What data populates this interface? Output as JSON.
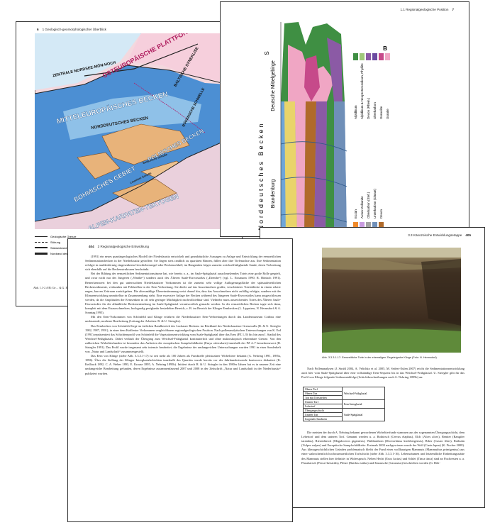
{
  "page1": {
    "header": {
      "number": "6",
      "title": "1 Geologisch-geomorphologischer Überblick"
    },
    "map": {
      "labels": [
        "OSTEUROPÄISCHE PLATTFORM",
        "ZENTRALE NORDSEE-MÖN-HOCH",
        "BALTISCHE SYNEKLISE",
        "RÜGENSCHE SCHWELLE",
        "MITTELEUROPÄISCHES BECKEN",
        "NORDDEUTSCHES BECKEN",
        "POLNISCHES BECKEN",
        "BÖHMISCHES GEBIET",
        "Sudetische Scholle",
        "Lausitzer Scholle",
        "ALPEN-KARPATEN-TEKTOGEN"
      ]
    },
    "legend": [
      "Geologische Grenze",
      "Störung",
      "Südwestrand",
      "Nordrand des"
    ],
    "caption": "Abb. 1.1-2 A/B: Ge… & G. Ehrenberg 1985, verä…"
  },
  "page2": {
    "header": {
      "title": "1.1 Regionalgeologische Position",
      "number": "7"
    },
    "section_labels": {
      "left": "S",
      "right": "B",
      "mountains": "Deutsche Mittelgebirge",
      "basin": "Norddeutsches Becken",
      "region": "Brandenburg"
    },
    "legend_a": [
      {
        "label": "Alpidikum",
        "color": "#3f8f43"
      },
      {
        "label": "Alpidikum & Neoproterozoikum, Phyllite",
        "color": "#9fc87a"
      },
      {
        "label": "Devon (Rhein.)",
        "color": "#8b5aa5"
      },
      {
        "label": "Oberkarbon",
        "color": "#6c4ba0"
      },
      {
        "label": "Granulite",
        "color": "#c64a8a"
      },
      {
        "label": "Granite",
        "color": "#f0a6c4"
      }
    ],
    "legend_b": [
      {
        "label": "Eozän",
        "color": "#f08a2a"
      },
      {
        "label": "Autun-Vulkanite",
        "color": "#c89adf"
      },
      {
        "label": "Oberkarbon (Stef.)",
        "color": "#a2a2a2"
      },
      {
        "label": "Unterkarbon (Dinant)",
        "color": "#6f8fb8"
      },
      {
        "label": "Devon",
        "color": "#b06a2a"
      }
    ]
  },
  "page3": {
    "header": {
      "number": "404",
      "title": "3 Regionalgeologische Entwicklung"
    },
    "paragraphs": [
      "(1991) ein neues quartärgeologisches Modell der Niederlausitz entwickelt und grundsätzliche Aussagen zu Anlage und Entwicklung der eemzeitlichen Sedimentationsbecken in der Niederlausitz getroffen: Sie liegen stets randlich zu quartären Rinnen, füllen aber ihre Tiefenachse aus. Ihre Sedimentation erfolgte in muldenförmig eingesenktem Geschiebemergel oder Beckenschluff; im Hangenden folgen zumeist weichselfrühglaziale Sande, deren Verbreitung sich ebenfalls auf die Beckenstrukturen beschränkt.",
      "Bei der Bildung der eemzeitlichen Sedimentationsräume hat, wie bereits o. a., im Saale-Spätglazial ausschmelzendes Toteis eine große Rolle gespielt, und zwar nicht nur des Jüngeren („Warthe“) sondern auch des Älteren Saale-Eisvorstoßes („Drenthe“) (vgl. L. Eissmann 1990, R. Bönisch 1991). Bemerkenswert bei den gut untersuchten Niederlausitzer Vorkommen ist die zumeist sehr vollige Auflagerungsfläche der spätsaalezeitlichen Beckensedimente, verbunden mit Fehlstellen in der Eem-Verbreitung. Sie dürfte auf das Ausschmelzen großer, verschütteter Toteisblöcke in einem relativ engen, kurzen Zeitraum zurückgehen. Die altersmäßige Übereinstimmung weist darauf hin, dass das Ausschmelzen nicht zufällig erfolgte, sondern mit der Klimaentwicklung unmittelbar in Zusammenhang steht. Eine exzessive Anlage der Becken während des Jüngeren Saale-Eisvorstoßes kann ausgeschlossen werden, da die Amplituden der Eemsenken in oft sehr geringer Mächtigkeit nachvollziehbar sind. Vielmehr muss ausreichendes Toteis des Älteren Saale-Eisvorstoßes für die allmähliche Beckenentstehung im Saale-Spätglazial verantwortlich gemacht werden. In der eemzeitlichen Becken tagte sich dann, komplett mit dem Eisausschmelzen, hochgradig periglaziär besiedelten Bereich, z. B. im Bereich der Klinger Eembecken (L. Lippstreu, N. Hermsdorf & A. Sonntag 1995).",
      "Mit den Eem-Vorkommen von Schönfeld und Klinge erfahren die Niederlausitzer Eem-Verbreitungen durch das Landesmuseum Cottbus eine umfassende, moderne Bearbeitung (Leitung der Arbeiten: R. & U. Striegler).",
      "Das Eembecken von Schönfeld liegt im östlichen Randbereich des Luckauer Beckens im Rückland des Niederlausitzer Grenzwalls (R. & U. Striegler 1982, 1987, 1991), in einer dem Kohlentor Vorkommen vergleichbaren regionalgeologischen Position. Nach pollenanalytischen Untersuchungen von K. Erd (1991) repräsentiert das Schichtenprofil von Schönfeld die Vegetationsentwicklung vom Saale-Spätglazial über das Eem (PZ 1–9) bis hin zum I. Stadial des Weichsel-Frühglazials. Dabei verläuft der Übergang zum Weichsel-Frühglazial kontinuierlich und ohne makroskopisch erkennbare Grenze. Von den zahlreichen Wirbeltierfunden ist besonders das Auftreten der europäischen Sumpfschildkröte (Emys orbicularis) innerhalb der PZ 4–7 bemerkenswert (R. Striegler 1991). Das Profil wurde insgesamt sehr intensiv bearbeitet; die Ergebnisse der umfangreichen Untersuchungen wurden 1991 in einer Sonderheft von „Natur und Landschaft“ zusammengestellt.",
      "Das Eem von Klinge (siehe Abb. 3.3.3.1-17) ist seit mehr als 100 Jahren als Fundstelle pleistozäner Wirbeltiere bekannt (A. Nehring 1891, 1895a, 1896). Über die Stellung der Klinger Interglazialschichten innerhalb des Quartärs wurde bereits vor der Jahrhundertwende kontrovers diskutiert (K. Keilhack 1892, C. A. Weber 1893, E. Krause 1895, A. Nehring 1895b). Initiiert durch R. & U. Striegler in den 1980er Jahren hat es in neuerer Zeit eine umfangreiche Bearbeitung gefunden, deren Ergebnisse zusammenfassend 2007 und 2008 in der Zeitschrift „Natur und Landschaft in der Niederlausitz“ publiziert wurden."
    ]
  },
  "page4": {
    "header": {
      "title": "3.3 Känozoische Entwicklungsetappe",
      "number": "405"
    },
    "caption": "Abb. 3.3.3.1-17: Eemzeitliche Torfe in der ehemaligen Ziegeleigrube Klinge (Foto: N. Hermsdorf).",
    "intro": "Nach Pollenanalysen (J. Strahl 2004, A. Velichko et al. 2005, M. Seifert-Eulen 2007) reicht die Sedimentationsentwicklung auch hier vom Saale-Spätglazial über eine vollständige Eem-Sequenz bis in das Weichsel-Frühglazial. U. Striegler gibt für das Profil von Klinge folgende Sedimentabfolge (Schichtbeschreibungen nach A. Nehring 1895b) an:",
    "table": {
      "groups": [
        {
          "stage": "Weichsel-Frühglazial",
          "layers": [
            "Oberer Torf",
            "Oberer Ton",
            "Ton mit Torfstreifen"
          ]
        },
        {
          "stage": "Eem-Interglazial",
          "layers": [
            "Unterer Torf",
            "Lebertorf"
          ]
        },
        {
          "stage": "Saale-Spätglazial",
          "layers": [
            "Übergangsschicht",
            "Unterer Ton",
            "Liegender Sandstein"
          ]
        }
      ]
    },
    "body": "Die meisten der durch A. Nehring bekannt gewordenen Wirbeltierfunde stammen aus der sogenannten Übergangsschicht, dem Lebertorf und dem unteren Torf. Genannt werden u. a. Rothirsch (Cervus elaphus), Elch (Alces alces), Rentier (Rangifer tarandus), Riesenhirsch (Megaloceros giganteus), Waldnashorn (Dicerorhinus kirchbergensis), Biber (Castor fiber), Rothuhn (Vulpes vulpes) und Europäische Sumpfschildkröte. Erstmals 2003 nachgewiesen wurde der Wolf (Canis lupus) (K. Fischer 2008). Aus klimageschichtlichen Gründen problematisch bleibt der Fund eines wollhaarigen Mammuts (Mammuthus primigenius) aus einer wahrscheinlich hochwarmzeitlichen Torfschicht (siehe Abb. 3.3.3.1-16). Lebensräumen und letztendliche Einbettungsstätte des Mammuts stellen hier definitiv in Widerspruch. Neben Hecht (Esox lucius) und Schlei (Tinca tinca) sind an Fischresten u. a. Flussbarsch (Perca fluviatilis), Plötze (Rutilus rutilus) und Karausche (Carassius) beschrieben worden (G. Böh-"
  }
}
